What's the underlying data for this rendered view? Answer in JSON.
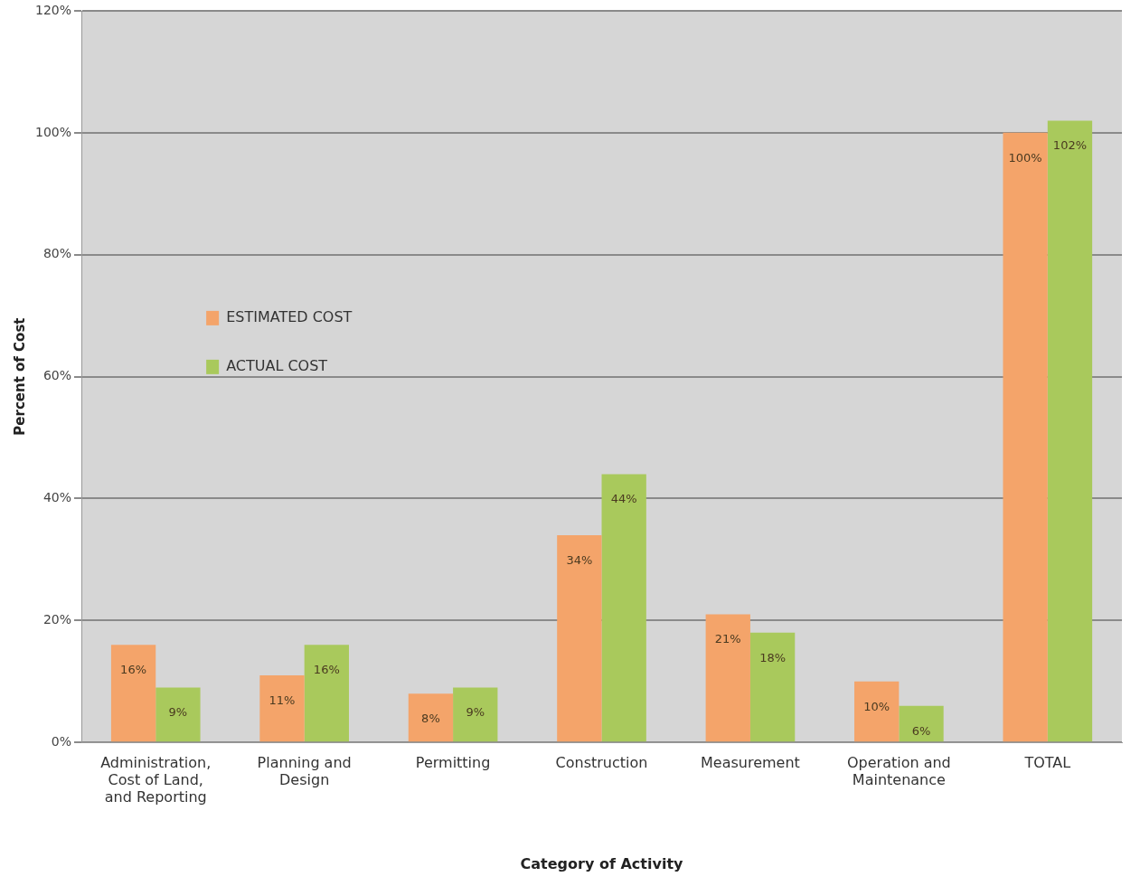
{
  "chart_data": {
    "type": "bar",
    "xlabel": "Category of Activity",
    "ylabel": "Percent of Cost",
    "categories": [
      "Administration, Cost of Land, and Reporting",
      "Planning and Design",
      "Permitting",
      "Construction",
      "Measurement",
      "Operation and Maintenance",
      "TOTAL"
    ],
    "series": [
      {
        "name": "ESTIMATED COST",
        "color": "#f4a46a",
        "values": [
          16,
          11,
          8,
          34,
          21,
          10,
          100
        ],
        "value_labels": [
          "16%",
          "11%",
          "8%",
          "34%",
          "21%",
          "10%",
          "100%"
        ]
      },
      {
        "name": "ACTUAL COST",
        "color": "#a9c95c",
        "values": [
          9,
          16,
          9,
          44,
          18,
          6,
          102
        ],
        "value_labels": [
          "9%",
          "16%",
          "9%",
          "44%",
          "18%",
          "6%",
          "102%"
        ]
      }
    ],
    "ylim": [
      0,
      120
    ],
    "yticks": [
      {
        "value": 0,
        "label": "0%"
      },
      {
        "value": 20,
        "label": "20%"
      },
      {
        "value": 40,
        "label": "40%"
      },
      {
        "value": 60,
        "label": "60%"
      },
      {
        "value": 80,
        "label": "80%"
      },
      {
        "value": 100,
        "label": "100%"
      },
      {
        "value": 120,
        "label": "120%"
      }
    ],
    "grid": "y",
    "legend": "left"
  }
}
